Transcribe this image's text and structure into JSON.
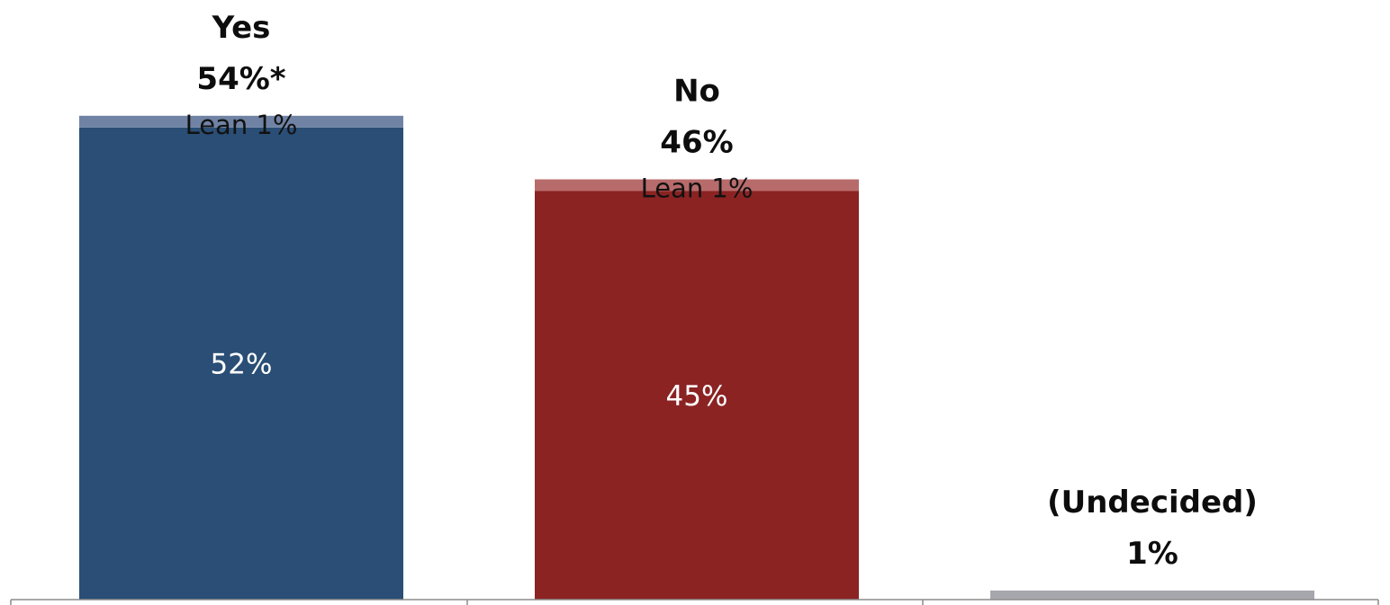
{
  "chart_data": {
    "type": "bar",
    "stacked": true,
    "categories": [
      "Yes",
      "No",
      "(Undecided)"
    ],
    "totals": [
      54,
      46,
      1
    ],
    "total_labels": [
      "54%*",
      "46%",
      "1%"
    ],
    "series": [
      {
        "values": [
          52,
          45,
          1
        ],
        "inside_labels": [
          "52%",
          "45%",
          ""
        ]
      },
      {
        "values": [
          1,
          1,
          0
        ],
        "lean_labels": [
          "Lean 1%",
          "Lean 1%",
          ""
        ]
      }
    ],
    "ylim": [
      0,
      60
    ],
    "grid": false,
    "legend": "none",
    "colors": {
      "main": [
        "#2a4e75",
        "#8b2323",
        "#a6a6ad"
      ],
      "lean": [
        "#7083a4",
        "#b86b6b",
        "#a6a6ad"
      ],
      "axis": "#8c8c8c"
    }
  }
}
